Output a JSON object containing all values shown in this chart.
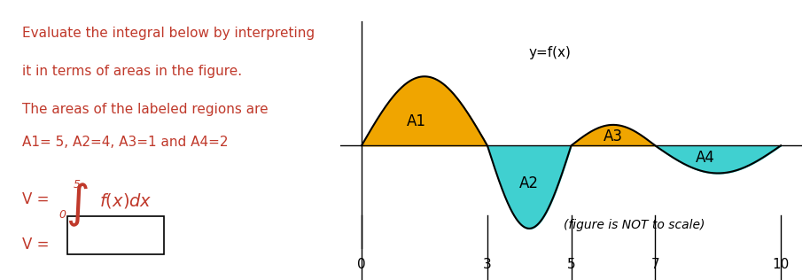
{
  "text_lines": [
    "Evaluate the integral below by interpreting",
    "it in terms of areas in the figure.",
    "The areas of the labeled regions are",
    "A1= 5, A2=4, A3=1 and A4=2"
  ],
  "text_color": "#c0392b",
  "integral_color": "#c0392b",
  "figure_note": "(figure is NOT to scale)",
  "x_ticks": [
    0,
    3,
    5,
    7,
    10
  ],
  "region_labels": [
    "A1",
    "A2",
    "A3",
    "A4"
  ],
  "color_above": "#f0a500",
  "color_below": "#40d0d0",
  "bg_color": "#ffffff",
  "ylabel_text": "y=f(x)"
}
